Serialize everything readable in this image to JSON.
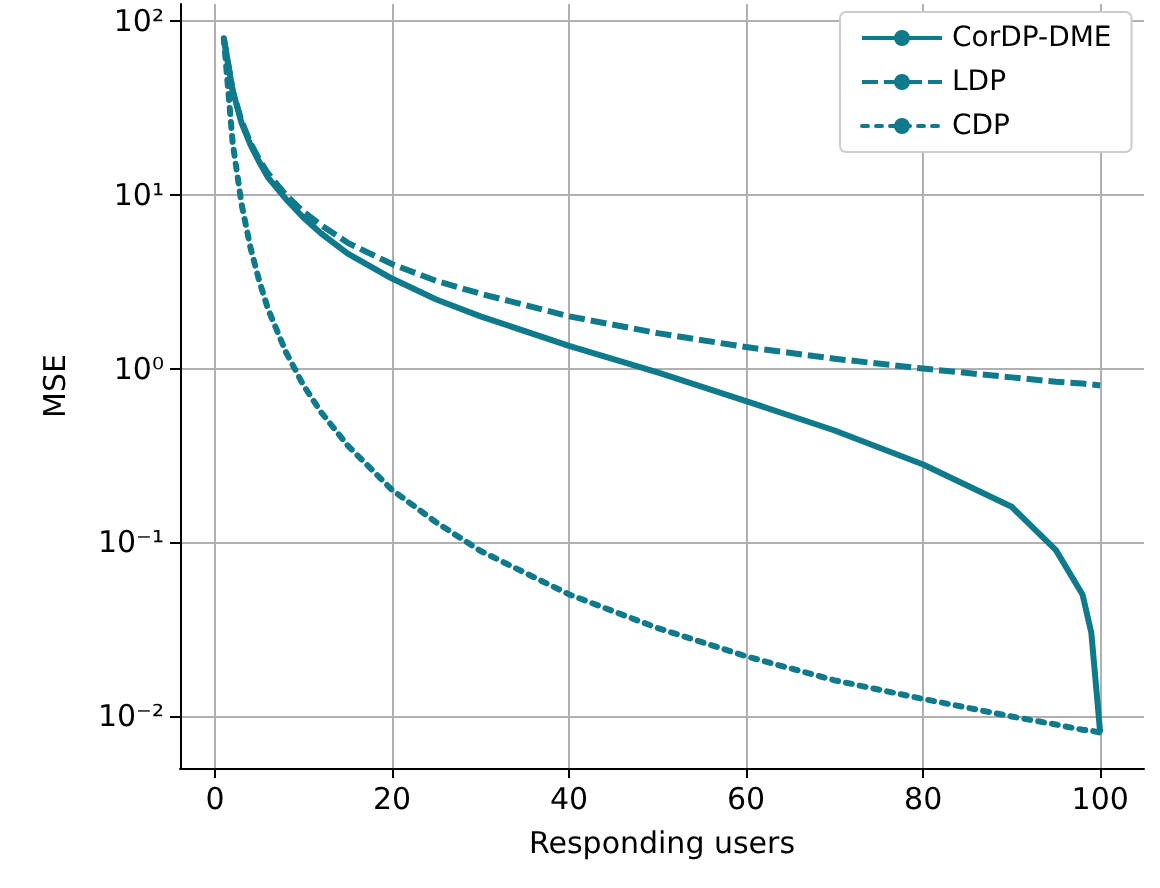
{
  "chart_data": {
    "type": "line",
    "xlabel": "Responding users",
    "ylabel": "MSE",
    "log": "y",
    "grid": true,
    "legend": "top right",
    "marker": "none",
    "xlim": [
      -3.95,
      104.95
    ],
    "xticks": [
      0,
      20,
      40,
      60,
      80,
      100
    ],
    "ylim": [
      0.005,
      126
    ],
    "yticks": [
      {
        "value": 0.01,
        "label": "10⁻²"
      },
      {
        "value": 0.1,
        "label": "10⁻¹"
      },
      {
        "value": 1,
        "label": "10⁰"
      },
      {
        "value": 10,
        "label": "10¹"
      },
      {
        "value": 100,
        "label": "10²"
      }
    ],
    "x": [
      1,
      2,
      3,
      4,
      5,
      6,
      8,
      10,
      12,
      15,
      20,
      25,
      30,
      40,
      50,
      60,
      70,
      80,
      90,
      95,
      98,
      99,
      100
    ],
    "series": [
      {
        "name": "CorDP-DME",
        "color": "#0e7a8c",
        "line_style": "solid",
        "values": [
          80,
          40,
          26,
          19.5,
          15.5,
          12.6,
          9.5,
          7.4,
          6,
          4.6,
          3.3,
          2.5,
          2,
          1.35,
          0.95,
          0.65,
          0.44,
          0.28,
          0.16,
          0.09,
          0.05,
          0.03,
          0.008
        ]
      },
      {
        "name": "LDP",
        "color": "#0e7a8c",
        "line_style": "dashed",
        "values": [
          80,
          40,
          26.7,
          20,
          16,
          13.3,
          10,
          8,
          6.7,
          5.3,
          4,
          3.2,
          2.7,
          2,
          1.6,
          1.33,
          1.14,
          1,
          0.89,
          0.84,
          0.82,
          0.81,
          0.8
        ]
      },
      {
        "name": "CDP",
        "color": "#0e7a8c",
        "line_style": "dotted",
        "values": [
          80,
          20,
          8.9,
          5,
          3.2,
          2.2,
          1.25,
          0.8,
          0.56,
          0.36,
          0.2,
          0.13,
          0.089,
          0.05,
          0.032,
          0.022,
          0.016,
          0.0125,
          0.0099,
          0.0089,
          0.0083,
          0.0082,
          0.008
        ]
      }
    ]
  }
}
